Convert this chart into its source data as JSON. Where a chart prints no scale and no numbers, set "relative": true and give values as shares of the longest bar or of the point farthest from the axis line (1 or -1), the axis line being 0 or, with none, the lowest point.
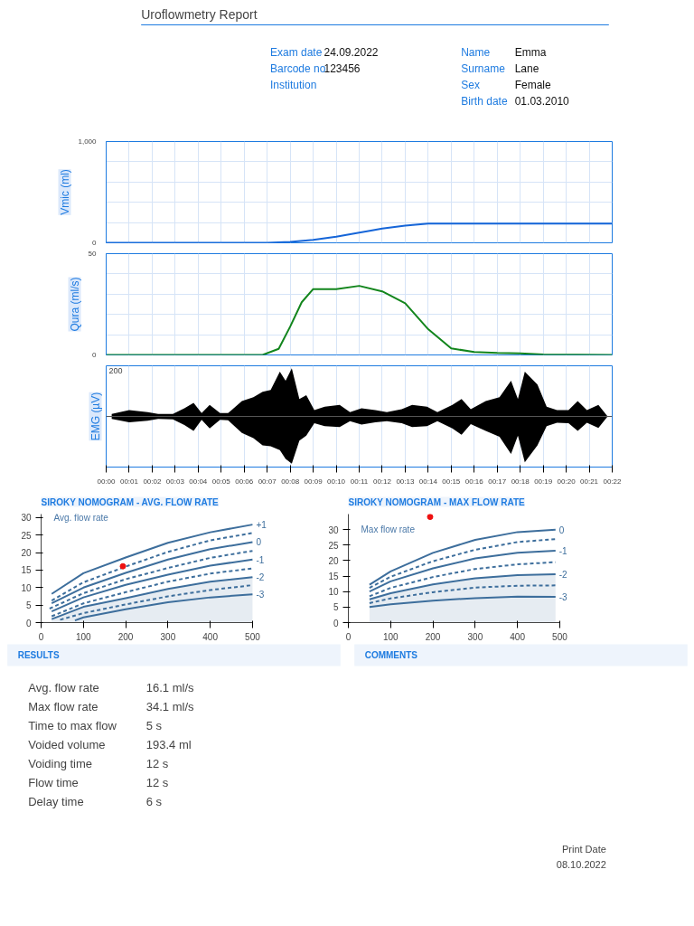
{
  "chart_data": [
    {
      "type": "other",
      "title": "Uroflowmetry Report",
      "annotations": [
        "Exam date",
        "24.09.2022",
        "Barcode no",
        "123456",
        "Institution",
        "Name",
        "Emma",
        "Surname",
        "Lane",
        "Sex",
        "Female",
        "Birth date",
        "01.03.2010"
      ]
    },
    {
      "type": "line",
      "ylabel": "Vmic (ml)",
      "color": "#1565d8",
      "tick_labels": "y",
      "grid": true,
      "x": [
        0,
        7,
        8,
        9,
        10,
        11,
        12,
        13,
        14,
        15,
        22
      ],
      "values": [
        0,
        0,
        10,
        30,
        60,
        100,
        140,
        170,
        190,
        190,
        190
      ],
      "xlim": [
        0,
        22
      ],
      "xticks": [
        0,
        1,
        2,
        3,
        4,
        5,
        6,
        7,
        8,
        9,
        10,
        11,
        12,
        13,
        14,
        15,
        16,
        17,
        18,
        19,
        20,
        21,
        22
      ],
      "ylim": [
        0,
        1000
      ],
      "yticks": [
        0,
        {
          "value": 200,
          "label": null
        },
        {
          "value": 400,
          "label": null
        },
        {
          "value": 600,
          "label": null
        },
        {
          "value": 800,
          "label": null
        },
        {
          "value": 1000,
          "label": "1,000"
        }
      ]
    },
    {
      "type": "line",
      "ylabel": "Qura (ml/s)",
      "color": "#12851c",
      "tick_labels": "y",
      "grid": true,
      "x": [
        0,
        6.8,
        7.5,
        8,
        8.5,
        9,
        10,
        11,
        12,
        13,
        14,
        15,
        16,
        17,
        18,
        19,
        22
      ],
      "values": [
        0,
        0,
        3,
        14,
        26,
        32.5,
        32.5,
        34.1,
        31.4,
        25.5,
        12.7,
        3.2,
        1.5,
        1,
        0.8,
        0.2,
        0
      ],
      "xlim": [
        0,
        22
      ],
      "xticks": [
        0,
        1,
        2,
        3,
        4,
        5,
        6,
        7,
        8,
        9,
        10,
        11,
        12,
        13,
        14,
        15,
        16,
        17,
        18,
        19,
        20,
        21,
        22
      ],
      "ylim": [
        0,
        50
      ],
      "yticks": [
        0,
        {
          "value": 10,
          "label": null
        },
        {
          "value": 20,
          "label": null
        },
        {
          "value": 30,
          "label": null
        },
        {
          "value": 40,
          "label": null
        },
        50
      ]
    },
    {
      "type": "area",
      "ylabel": "EMG (µV)",
      "relative": true,
      "tick_labels": "x",
      "grid": "x",
      "annotations": [
        "200"
      ],
      "x": [
        0.24,
        1.0,
        1.8,
        2.26,
        2.9,
        3.4,
        3.8,
        4.15,
        4.5,
        4.95,
        5.3,
        5.9,
        6.4,
        6.8,
        7.15,
        7.55,
        7.8,
        8.07,
        8.4,
        8.7,
        9.05,
        9.5,
        10.15,
        10.6,
        11.1,
        11.7,
        12.2,
        12.85,
        13.3,
        13.95,
        14.4,
        15.05,
        15.45,
        15.85,
        16.5,
        17.1,
        17.6,
        17.9,
        18.2,
        18.75,
        19.15,
        19.6,
        20.1,
        20.5,
        20.9,
        21.4,
        21.8
      ],
      "series": [
        {
          "color": "#000000",
          "values": [
            0.05,
            0.13,
            0.09,
            0.05,
            0.05,
            0.17,
            0.28,
            0.07,
            0.24,
            0.07,
            0.07,
            0.32,
            0.4,
            0.51,
            0.55,
            0.93,
            0.74,
            1.0,
            0.36,
            0.44,
            0.13,
            0.2,
            0.24,
            0.09,
            0.17,
            0.13,
            0.09,
            0.15,
            0.24,
            0.2,
            0.09,
            0.24,
            0.36,
            0.15,
            0.32,
            0.4,
            0.74,
            0.36,
            0.93,
            0.66,
            0.2,
            0.13,
            0.13,
            0.32,
            0.13,
            0.24,
            0.0
          ]
        },
        {
          "color": "#000000",
          "values": [
            -0.05,
            -0.12,
            -0.09,
            -0.05,
            -0.06,
            -0.18,
            -0.3,
            -0.07,
            -0.25,
            -0.07,
            -0.08,
            -0.34,
            -0.45,
            -0.6,
            -0.62,
            -0.7,
            -0.88,
            -0.98,
            -0.5,
            -0.4,
            -0.14,
            -0.2,
            -0.22,
            -0.1,
            -0.17,
            -0.12,
            -0.1,
            -0.14,
            -0.22,
            -0.2,
            -0.1,
            -0.25,
            -0.38,
            -0.16,
            -0.3,
            -0.42,
            -0.78,
            -0.4,
            -0.95,
            -0.6,
            -0.2,
            -0.13,
            -0.14,
            -0.3,
            -0.13,
            -0.24,
            0.0
          ]
        }
      ],
      "xticks": [
        {
          "value": 0,
          "label": "00:00"
        },
        {
          "value": 1,
          "label": "00:01"
        },
        {
          "value": 2,
          "label": "00:02"
        },
        {
          "value": 3,
          "label": "00:03"
        },
        {
          "value": 4,
          "label": "00:04"
        },
        {
          "value": 5,
          "label": "00:05"
        },
        {
          "value": 6,
          "label": "00:06"
        },
        {
          "value": 7,
          "label": "00:07"
        },
        {
          "value": 8,
          "label": "00:08"
        },
        {
          "value": 9,
          "label": "00:09"
        },
        {
          "value": 10,
          "label": "00:10"
        },
        {
          "value": 11,
          "label": "00:11"
        },
        {
          "value": 12,
          "label": "00:12"
        },
        {
          "value": 13,
          "label": "00:13"
        },
        {
          "value": 14,
          "label": "00:14"
        },
        {
          "value": 15,
          "label": "00:15"
        },
        {
          "value": 16,
          "label": "00:16"
        },
        {
          "value": 17,
          "label": "00:17"
        },
        {
          "value": 18,
          "label": "00:18"
        },
        {
          "value": 19,
          "label": "00:19"
        },
        {
          "value": 20,
          "label": "00:20"
        },
        {
          "value": 21,
          "label": "00:21"
        },
        {
          "value": 22,
          "label": "00:22"
        }
      ],
      "xlim": [
        0,
        22
      ]
    },
    {
      "type": "line",
      "title": "SIROKY NOMOGRAM - AVG. FLOW RATE",
      "annotations": [
        "Avg. flow rate"
      ],
      "xlim": [
        0,
        500
      ],
      "xticks": [
        0,
        100,
        200,
        300,
        400,
        500
      ],
      "ylim": [
        0,
        31
      ],
      "yticks": [
        0,
        5,
        10,
        15,
        20,
        25,
        30
      ],
      "series": [
        {
          "name": "+1",
          "color": "#3d6e9c",
          "line_style": "solid",
          "x": [
            25,
            100,
            200,
            300,
            400,
            500
          ],
          "values": [
            8.2,
            14.1,
            18.6,
            22.8,
            25.8,
            28.0
          ]
        },
        {
          "color": "#3d6e9c",
          "line_style": "dashed",
          "x": [
            25,
            100,
            200,
            300,
            400,
            500
          ],
          "values": [
            6.3,
            11.5,
            16.0,
            20.2,
            23.5,
            25.6
          ]
        },
        {
          "name": "0",
          "color": "#3d6e9c",
          "line_style": "solid",
          "x": [
            25,
            100,
            200,
            300,
            400,
            500
          ],
          "values": [
            5.5,
            10.0,
            14.2,
            18.0,
            21.0,
            23.0
          ]
        },
        {
          "color": "#3d6e9c",
          "line_style": "dashed",
          "x": [
            20,
            100,
            200,
            300,
            400,
            500
          ],
          "values": [
            4.0,
            8.4,
            12.4,
            15.6,
            18.5,
            20.5
          ]
        },
        {
          "name": "-1",
          "color": "#3d6e9c",
          "line_style": "solid",
          "x": [
            25,
            100,
            200,
            300,
            400,
            500
          ],
          "values": [
            3.2,
            7.2,
            10.8,
            13.7,
            16.3,
            18.0
          ]
        },
        {
          "color": "#3d6e9c",
          "line_style": "dashed",
          "x": [
            25,
            100,
            200,
            300,
            400,
            500
          ],
          "values": [
            1.8,
            5.5,
            8.7,
            11.7,
            14.0,
            15.5
          ]
        },
        {
          "name": "-2",
          "type": "area",
          "color": "#3d6e9c",
          "line_style": "solid",
          "x": [
            25,
            100,
            200,
            300,
            400,
            500
          ],
          "values": [
            1.0,
            4.5,
            7.0,
            9.6,
            11.7,
            13.0
          ]
        },
        {
          "color": "#3d6e9c",
          "line_style": "dashed",
          "x": [
            45,
            100,
            200,
            300,
            400,
            500
          ],
          "values": [
            0.8,
            2.7,
            5.2,
            7.5,
            9.3,
            10.7
          ]
        },
        {
          "name": "-3",
          "color": "#3d6e9c",
          "line_style": "solid",
          "x": [
            80,
            100,
            200,
            300,
            400,
            500
          ],
          "values": [
            0.6,
            1.5,
            3.8,
            5.8,
            7.2,
            8.1
          ]
        },
        {
          "type": "scatter",
          "marker": "circle",
          "color": "#ee1111",
          "x": [
            193.4
          ],
          "values": [
            16.1
          ]
        }
      ]
    },
    {
      "type": "line",
      "title": "SIROKY NOMOGRAM - MAX FLOW RATE",
      "annotations": [
        "Max flow rate"
      ],
      "xlim": [
        0,
        500
      ],
      "xticks": [
        0,
        100,
        200,
        300,
        400,
        500
      ],
      "ylim": [
        0,
        35
      ],
      "yticks": [
        0,
        5,
        10,
        15,
        20,
        25,
        30
      ],
      "series": [
        {
          "name": "0",
          "color": "#3d6e9c",
          "line_style": "solid",
          "x": [
            50,
            100,
            200,
            300,
            400,
            490
          ],
          "values": [
            12.2,
            16.5,
            22.5,
            26.7,
            29.2,
            30.0
          ]
        },
        {
          "color": "#3d6e9c",
          "line_style": "dashed",
          "x": [
            50,
            100,
            200,
            300,
            400,
            490
          ],
          "values": [
            11.2,
            14.8,
            19.8,
            23.5,
            26.0,
            26.9
          ]
        },
        {
          "name": "-1",
          "color": "#3d6e9c",
          "line_style": "solid",
          "x": [
            50,
            100,
            200,
            300,
            400,
            490
          ],
          "values": [
            10.0,
            13.3,
            17.5,
            20.7,
            22.5,
            23.2
          ]
        },
        {
          "color": "#3d6e9c",
          "line_style": "dashed",
          "x": [
            50,
            100,
            200,
            300,
            400,
            490
          ],
          "values": [
            8.5,
            11.2,
            14.7,
            17.3,
            18.8,
            19.5
          ]
        },
        {
          "name": "-2",
          "type": "area",
          "color": "#3d6e9c",
          "line_style": "solid",
          "x": [
            50,
            100,
            200,
            300,
            400,
            490
          ],
          "values": [
            7.5,
            9.5,
            12.3,
            14.3,
            15.3,
            15.6
          ]
        },
        {
          "color": "#3d6e9c",
          "line_style": "dashed",
          "x": [
            50,
            100,
            200,
            300,
            400,
            490
          ],
          "values": [
            6.3,
            7.8,
            9.8,
            11.3,
            11.9,
            12.0
          ]
        },
        {
          "name": "-3",
          "color": "#3d6e9c",
          "line_style": "solid",
          "x": [
            50,
            100,
            200,
            300,
            400,
            490
          ],
          "values": [
            5.0,
            5.9,
            7.1,
            7.9,
            8.4,
            8.3
          ]
        },
        {
          "type": "scatter",
          "marker": "circle",
          "color": "#ee1111",
          "x": [
            193.4
          ],
          "values": [
            34.1
          ]
        }
      ]
    },
    {
      "type": "other",
      "title": "RESULTS",
      "annotations": [
        "Avg. flow rate",
        "16.1 ml/s",
        "Max flow rate",
        "34.1 ml/s",
        "Time to max flow",
        "5 s",
        "Voided volume",
        "193.4 ml",
        "Voiding time",
        "12 s",
        "Flow time",
        "12 s",
        "Delay time",
        "6 s"
      ]
    },
    {
      "type": "other",
      "title": "COMMENTS"
    },
    {
      "type": "other",
      "annotations": [
        "Print Date",
        "08.10.2022"
      ]
    }
  ]
}
